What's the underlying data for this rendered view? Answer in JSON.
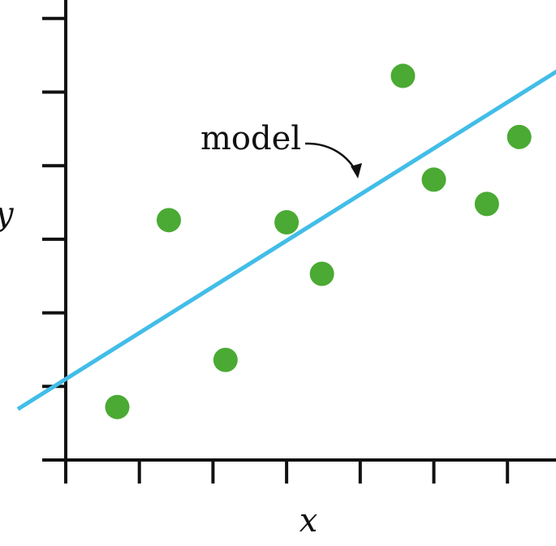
{
  "chart_data": {
    "type": "scatter",
    "title": "",
    "xlabel": "x",
    "ylabel": "y",
    "xlim": [
      0,
      6.7
    ],
    "ylim": [
      0,
      6.3
    ],
    "x_ticks": [
      0,
      1,
      2,
      3,
      4,
      5,
      6
    ],
    "y_ticks": [
      1,
      2,
      3,
      4,
      5,
      6
    ],
    "tick_labels_shown": false,
    "grid": false,
    "legend": "none",
    "series": [
      {
        "points": [
          {
            "x": 0.7,
            "y": 0.72
          },
          {
            "x": 1.4,
            "y": 3.26
          },
          {
            "x": 2.17,
            "y": 1.36
          },
          {
            "x": 3.0,
            "y": 3.23
          },
          {
            "x": 3.48,
            "y": 2.53
          },
          {
            "x": 4.58,
            "y": 5.22
          },
          {
            "x": 5.0,
            "y": 3.81
          },
          {
            "x": 5.72,
            "y": 3.48
          },
          {
            "x": 6.16,
            "y": 4.39
          }
        ],
        "color": "#4aaa33"
      }
    ],
    "lines": [
      {
        "label": "model",
        "x_range": [
          -0.65,
          6.7
        ],
        "slope": 0.627,
        "intercept": 1.1,
        "color": "#42bde8"
      }
    ],
    "annotations": [
      {
        "text": "model",
        "target": "model line"
      }
    ]
  }
}
